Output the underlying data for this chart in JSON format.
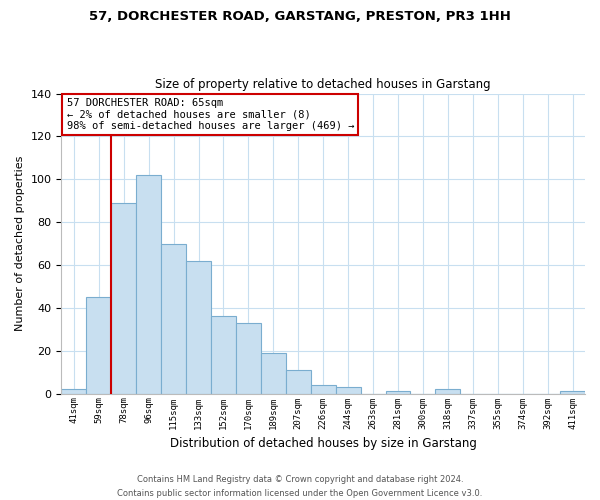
{
  "title1": "57, DORCHESTER ROAD, GARSTANG, PRESTON, PR3 1HH",
  "title2": "Size of property relative to detached houses in Garstang",
  "xlabel": "Distribution of detached houses by size in Garstang",
  "ylabel": "Number of detached properties",
  "categories": [
    "41sqm",
    "59sqm",
    "78sqm",
    "96sqm",
    "115sqm",
    "133sqm",
    "152sqm",
    "170sqm",
    "189sqm",
    "207sqm",
    "226sqm",
    "244sqm",
    "263sqm",
    "281sqm",
    "300sqm",
    "318sqm",
    "337sqm",
    "355sqm",
    "374sqm",
    "392sqm",
    "411sqm"
  ],
  "values": [
    2,
    45,
    89,
    102,
    70,
    62,
    36,
    33,
    19,
    11,
    4,
    3,
    0,
    1,
    0,
    2,
    0,
    0,
    0,
    0,
    1
  ],
  "bar_color": "#c8dff0",
  "bar_edge_color": "#7aadcf",
  "vline_color": "#cc0000",
  "vline_index": 1.5,
  "annotation_text": "57 DORCHESTER ROAD: 65sqm\n← 2% of detached houses are smaller (8)\n98% of semi-detached houses are larger (469) →",
  "annotation_box_color": "#ffffff",
  "annotation_box_edge": "#cc0000",
  "ylim": [
    0,
    140
  ],
  "yticks": [
    0,
    20,
    40,
    60,
    80,
    100,
    120,
    140
  ],
  "footer_line1": "Contains HM Land Registry data © Crown copyright and database right 2024.",
  "footer_line2": "Contains public sector information licensed under the Open Government Licence v3.0.",
  "bg_color": "#ffffff",
  "grid_color": "#c8dff0"
}
